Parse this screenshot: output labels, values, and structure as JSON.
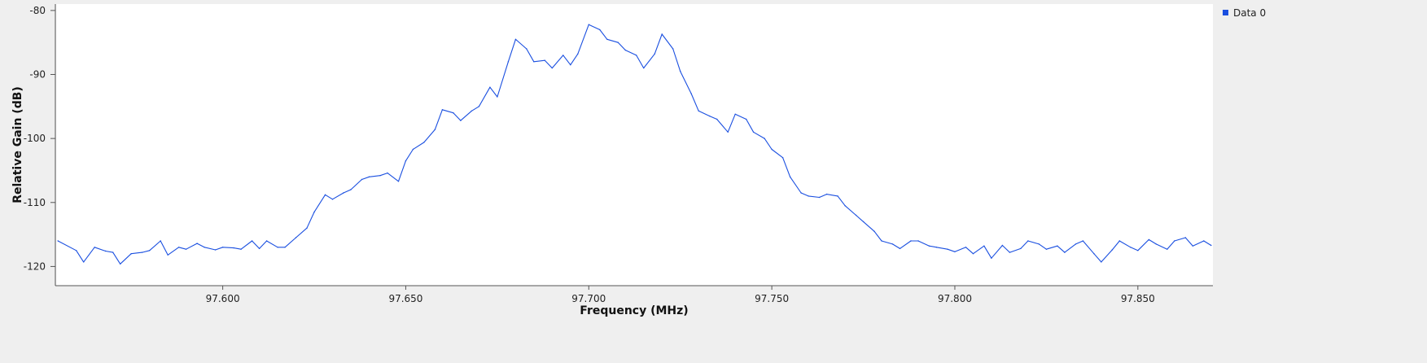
{
  "chart_data": {
    "type": "line",
    "title": "",
    "xlabel": "Frequency (MHz)",
    "ylabel": "Relative Gain (dB)",
    "xlim": [
      97.5545,
      97.8705
    ],
    "ylim": [
      -123,
      -79
    ],
    "x_ticks": [
      97.6,
      97.65,
      97.7,
      97.75,
      97.8,
      97.85
    ],
    "x_tick_labels": [
      "97.600",
      "97.650",
      "97.700",
      "97.750",
      "97.800",
      "97.850"
    ],
    "y_ticks": [
      -80,
      -90,
      -100,
      -110,
      -120
    ],
    "y_tick_labels": [
      "-80",
      "-90",
      "-100",
      "-110",
      "-120"
    ],
    "grid": false,
    "legend_position": "top-right",
    "series": [
      {
        "name": "Data 0",
        "color": "#1a4fe0",
        "x": [
          97.555,
          97.56,
          97.562,
          97.565,
          97.568,
          97.57,
          97.572,
          97.575,
          97.578,
          97.58,
          97.583,
          97.585,
          97.588,
          97.59,
          97.593,
          97.595,
          97.598,
          97.6,
          97.603,
          97.605,
          97.608,
          97.61,
          97.612,
          97.615,
          97.617,
          97.62,
          97.623,
          97.625,
          97.628,
          97.63,
          97.633,
          97.635,
          97.638,
          97.64,
          97.643,
          97.645,
          97.648,
          97.65,
          97.652,
          97.655,
          97.658,
          97.66,
          97.663,
          97.665,
          97.668,
          97.67,
          97.673,
          97.675,
          97.678,
          97.68,
          97.683,
          97.685,
          97.688,
          97.69,
          97.693,
          97.695,
          97.697,
          97.7,
          97.703,
          97.705,
          97.708,
          97.71,
          97.713,
          97.715,
          97.718,
          97.72,
          97.723,
          97.725,
          97.728,
          97.73,
          97.733,
          97.735,
          97.738,
          97.74,
          97.743,
          97.745,
          97.748,
          97.75,
          97.753,
          97.755,
          97.758,
          97.76,
          97.763,
          97.765,
          97.768,
          97.77,
          97.773,
          97.775,
          97.778,
          97.78,
          97.783,
          97.785,
          97.788,
          97.79,
          97.793,
          97.795,
          97.798,
          97.8,
          97.803,
          97.805,
          97.808,
          97.81,
          97.813,
          97.815,
          97.818,
          97.82,
          97.823,
          97.825,
          97.828,
          97.83,
          97.833,
          97.835,
          97.838,
          97.84,
          97.843,
          97.845,
          97.848,
          97.85,
          97.853,
          97.855,
          97.858,
          97.86,
          97.863,
          97.865,
          97.868,
          97.87
        ],
        "y": [
          -116.0,
          -117.5,
          -119.3,
          -117.0,
          -117.6,
          -117.8,
          -119.6,
          -118.0,
          -117.8,
          -117.5,
          -116.0,
          -118.2,
          -117.0,
          -117.3,
          -116.4,
          -117.0,
          -117.4,
          -117.0,
          -117.1,
          -117.3,
          -116.0,
          -117.2,
          -116.0,
          -117.0,
          -117.0,
          -115.5,
          -114.0,
          -111.5,
          -108.8,
          -109.5,
          -108.5,
          -108.0,
          -106.4,
          -106.0,
          -105.8,
          -105.4,
          -106.7,
          -103.5,
          -101.7,
          -100.6,
          -98.6,
          -95.5,
          -96.0,
          -97.2,
          -95.7,
          -95.0,
          -92.0,
          -93.5,
          -88.0,
          -84.5,
          -86.0,
          -88.0,
          -87.8,
          -89.0,
          -87.0,
          -88.5,
          -86.8,
          -82.2,
          -83.0,
          -84.5,
          -85.0,
          -86.2,
          -87.0,
          -89.0,
          -86.8,
          -83.7,
          -86.0,
          -89.5,
          -93.0,
          -95.7,
          -96.5,
          -97.0,
          -99.0,
          -96.2,
          -97.0,
          -99.0,
          -100.0,
          -101.7,
          -103.0,
          -106.0,
          -108.5,
          -109.0,
          -109.2,
          -108.7,
          -109.0,
          -110.5,
          -112.0,
          -113.0,
          -114.5,
          -116.0,
          -116.5,
          -117.2,
          -116.0,
          -116.0,
          -116.8,
          -117.0,
          -117.3,
          -117.7,
          -117.0,
          -118.0,
          -116.8,
          -118.7,
          -116.7,
          -117.8,
          -117.2,
          -116.0,
          -116.5,
          -117.3,
          -116.8,
          -117.8,
          -116.5,
          -116.0,
          -118.0,
          -119.3,
          -117.4,
          -116.0,
          -117.0,
          -117.5,
          -115.8,
          -116.5,
          -117.3,
          -116.0,
          -115.5,
          -116.8,
          -116.0,
          -116.7
        ]
      }
    ]
  }
}
